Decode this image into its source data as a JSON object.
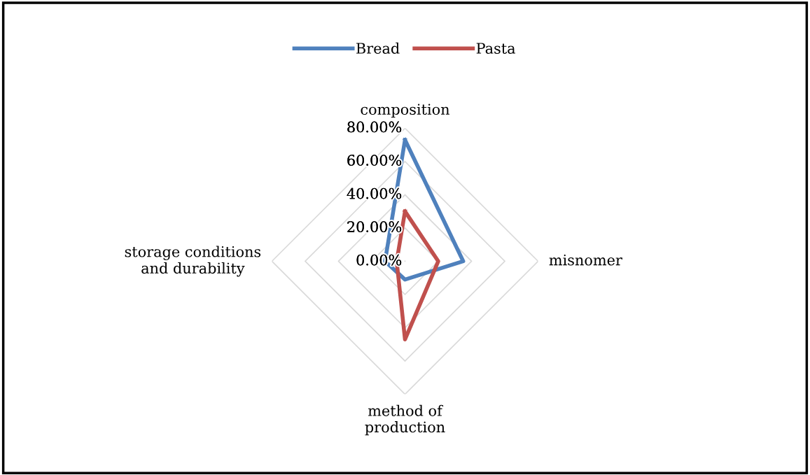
{
  "chart_data": {
    "type": "radar",
    "categories": [
      "composition",
      "misnomer",
      "method of\nproduction",
      "storage conditions\nand durability"
    ],
    "series": [
      {
        "name": "Bread",
        "color": "#4f81bd",
        "values": [
          73,
          35,
          11,
          12
        ]
      },
      {
        "name": "Pasta",
        "color": "#c0504d",
        "values": [
          30,
          20,
          47,
          5
        ]
      }
    ],
    "ylim": [
      0,
      80
    ],
    "yticks": [
      {
        "value": 0,
        "label": "0.00%"
      },
      {
        "value": 20,
        "label": "20.00%"
      },
      {
        "value": 40,
        "label": "40.00%"
      },
      {
        "value": 60,
        "label": "60.00%"
      },
      {
        "value": 80,
        "label": "80.00%"
      }
    ],
    "grid": true,
    "legend": "top",
    "marker": "none",
    "line_style": "solid"
  }
}
